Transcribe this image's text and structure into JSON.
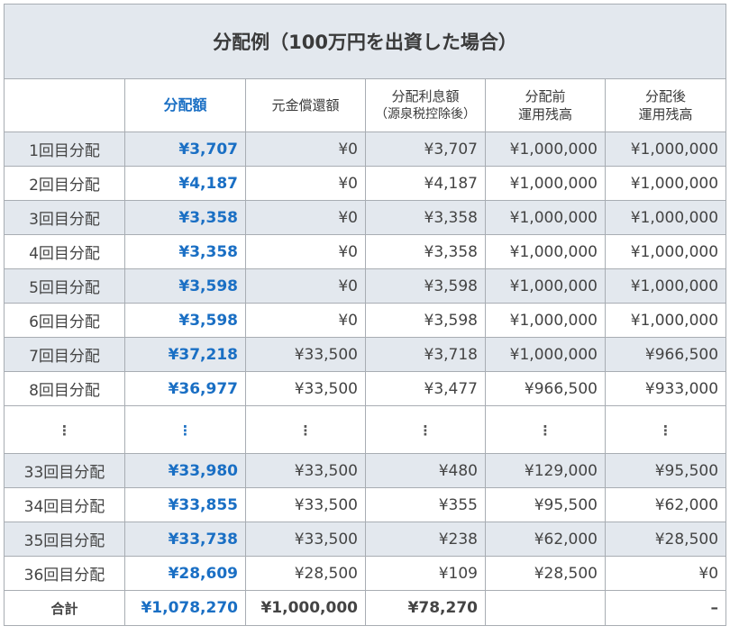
{
  "title": "分配例（100万円を出資した場合）",
  "headers": {
    "label": "",
    "dist": "分配額",
    "principal": "元金償還額",
    "interest_l1": "分配利息額",
    "interest_l2": "（源泉税控除後）",
    "before_l1": "分配前",
    "before_l2": "運用残高",
    "after_l1": "分配後",
    "after_l2": "運用残高"
  },
  "rows_top": [
    {
      "label": "1回目分配",
      "dist": "¥3,707",
      "principal": "¥0",
      "interest": "¥3,707",
      "before": "¥1,000,000",
      "after": "¥1,000,000"
    },
    {
      "label": "2回目分配",
      "dist": "¥4,187",
      "principal": "¥0",
      "interest": "¥4,187",
      "before": "¥1,000,000",
      "after": "¥1,000,000"
    },
    {
      "label": "3回目分配",
      "dist": "¥3,358",
      "principal": "¥0",
      "interest": "¥3,358",
      "before": "¥1,000,000",
      "after": "¥1,000,000"
    },
    {
      "label": "4回目分配",
      "dist": "¥3,358",
      "principal": "¥0",
      "interest": "¥3,358",
      "before": "¥1,000,000",
      "after": "¥1,000,000"
    },
    {
      "label": "5回目分配",
      "dist": "¥3,598",
      "principal": "¥0",
      "interest": "¥3,598",
      "before": "¥1,000,000",
      "after": "¥1,000,000"
    },
    {
      "label": "6回目分配",
      "dist": "¥3,598",
      "principal": "¥0",
      "interest": "¥3,598",
      "before": "¥1,000,000",
      "after": "¥1,000,000"
    },
    {
      "label": "7回目分配",
      "dist": "¥37,218",
      "principal": "¥33,500",
      "interest": "¥3,718",
      "before": "¥1,000,000",
      "after": "¥966,500"
    },
    {
      "label": "8回目分配",
      "dist": "¥36,977",
      "principal": "¥33,500",
      "interest": "¥3,477",
      "before": "¥966,500",
      "after": "¥933,000"
    }
  ],
  "ellipsis": "⋮",
  "rows_bottom": [
    {
      "label": "33回目分配",
      "dist": "¥33,980",
      "principal": "¥33,500",
      "interest": "¥480",
      "before": "¥129,000",
      "after": "¥95,500"
    },
    {
      "label": "34回目分配",
      "dist": "¥33,855",
      "principal": "¥33,500",
      "interest": "¥355",
      "before": "¥95,500",
      "after": "¥62,000"
    },
    {
      "label": "35回目分配",
      "dist": "¥33,738",
      "principal": "¥33,500",
      "interest": "¥238",
      "before": "¥62,000",
      "after": "¥28,500"
    },
    {
      "label": "36回目分配",
      "dist": "¥28,609",
      "principal": "¥28,500",
      "interest": "¥109",
      "before": "¥28,500",
      "after": "¥0"
    }
  ],
  "total": {
    "label": "合計",
    "dist": "¥1,078,270",
    "principal": "¥1,000,000",
    "interest": "¥78,270",
    "before": "",
    "after": "–"
  },
  "colors": {
    "accent": "#1a6fc4",
    "band": "#e3e8ee",
    "border": "#a8adb3"
  }
}
